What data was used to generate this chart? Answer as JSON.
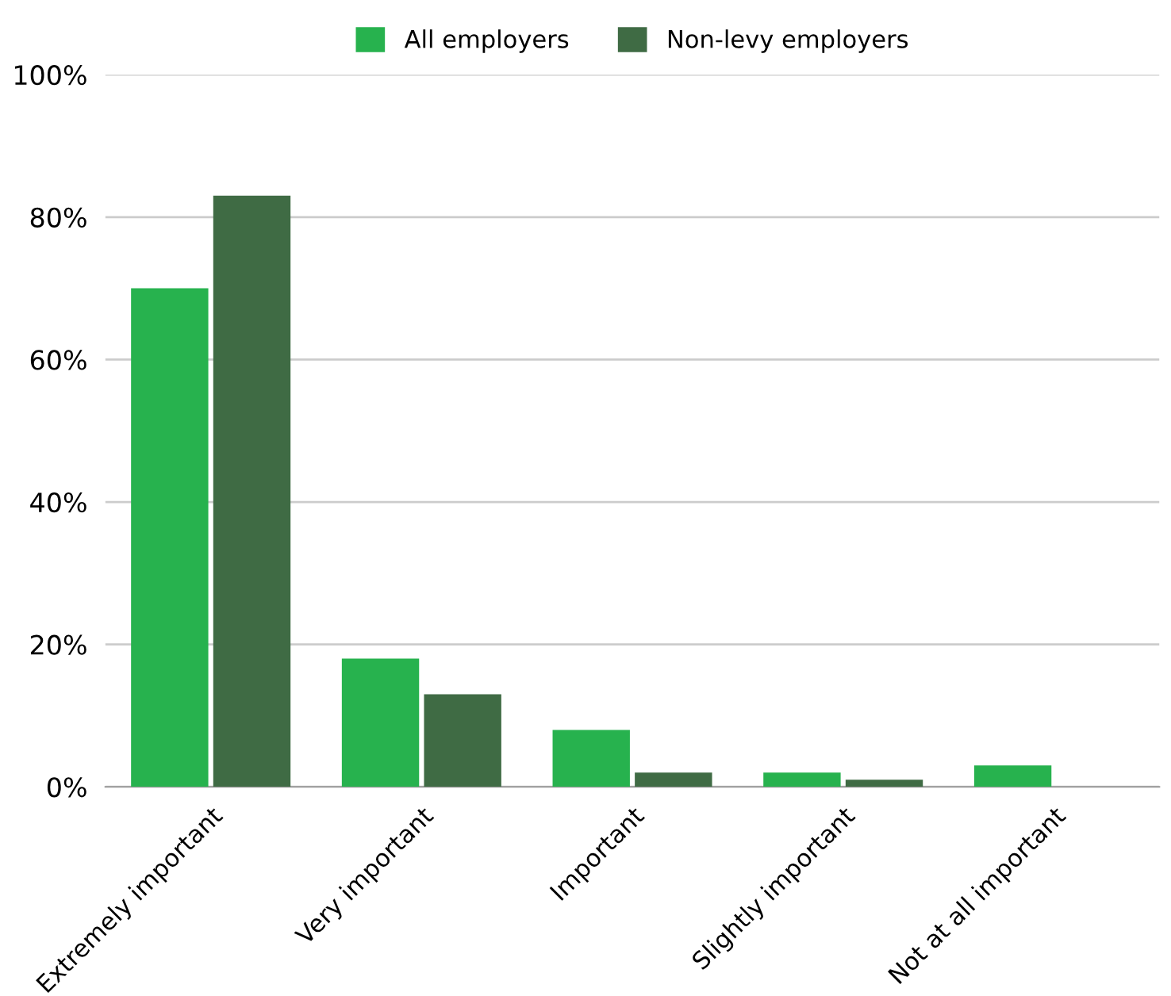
{
  "chart_data": {
    "type": "bar",
    "categories": [
      "Extremely important",
      "Very important",
      "Important",
      "Slightly important",
      "Not at all important"
    ],
    "series": [
      {
        "name": "All employers",
        "color": "#27b24e",
        "values": [
          70,
          18,
          8,
          2,
          3
        ]
      },
      {
        "name": "Non-levy employers",
        "color": "#3f6b44",
        "values": [
          83,
          13,
          2,
          1,
          0
        ]
      }
    ],
    "ylim": [
      0,
      100
    ],
    "yticks": [
      {
        "value": 0,
        "label": "0%"
      },
      {
        "value": 20,
        "label": "20%"
      },
      {
        "value": 40,
        "label": "40%"
      },
      {
        "value": 60,
        "label": "60%"
      },
      {
        "value": 80,
        "label": "80%"
      },
      {
        "value": 100,
        "label": "100%"
      }
    ],
    "grid": "y",
    "legend": "top"
  }
}
